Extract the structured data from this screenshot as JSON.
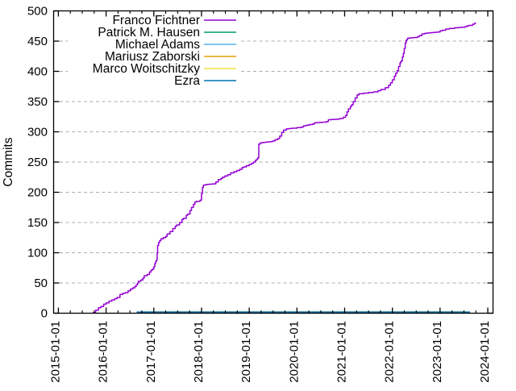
{
  "chart_data": {
    "type": "line",
    "title": "",
    "ylabel": "Commits",
    "xlabel": "",
    "ylim": [
      0,
      500
    ],
    "ytick_step": 50,
    "xlim_years": [
      2014.9,
      2024.11
    ],
    "xtick_years": [
      2015,
      2016,
      2017,
      2018,
      2019,
      2020,
      2021,
      2022,
      2023,
      2024
    ],
    "xtick_labels": [
      "2015-01-01",
      "2016-01-01",
      "2017-01-01",
      "2018-01-01",
      "2019-01-01",
      "2020-01-01",
      "2021-01-01",
      "2022-01-01",
      "2023-01-01",
      "2024-01-01"
    ],
    "ytick_labels": [
      "0",
      "50",
      "100",
      "150",
      "200",
      "250",
      "300",
      "350",
      "400",
      "450",
      "500"
    ],
    "grid": "horizontal-dashed",
    "grid_color": "#adadad",
    "legend_position": "top-left-inside",
    "series": [
      {
        "name": "Franco Fichtner",
        "color": "#9400d3",
        "style": "steps",
        "points": [
          [
            2015.72,
            1
          ],
          [
            2015.78,
            5
          ],
          [
            2015.84,
            9
          ],
          [
            2015.89,
            11
          ],
          [
            2015.95,
            15
          ],
          [
            2016.0,
            17
          ],
          [
            2016.06,
            20
          ],
          [
            2016.12,
            22
          ],
          [
            2016.18,
            24
          ],
          [
            2016.23,
            26
          ],
          [
            2016.29,
            31
          ],
          [
            2016.35,
            33
          ],
          [
            2016.4,
            34
          ],
          [
            2016.46,
            37
          ],
          [
            2016.51,
            40
          ],
          [
            2016.56,
            42
          ],
          [
            2016.6,
            44
          ],
          [
            2016.63,
            47
          ],
          [
            2016.66,
            50
          ],
          [
            2016.68,
            53
          ],
          [
            2016.73,
            55
          ],
          [
            2016.77,
            58
          ],
          [
            2016.8,
            62
          ],
          [
            2016.86,
            64
          ],
          [
            2016.91,
            68
          ],
          [
            2016.94,
            71
          ],
          [
            2016.97,
            73
          ],
          [
            2017.0,
            77
          ],
          [
            2017.02,
            82
          ],
          [
            2017.04,
            86
          ],
          [
            2017.06,
            88
          ],
          [
            2017.07,
            100
          ],
          [
            2017.08,
            112
          ],
          [
            2017.1,
            117
          ],
          [
            2017.12,
            120
          ],
          [
            2017.15,
            123
          ],
          [
            2017.2,
            125
          ],
          [
            2017.25,
            127
          ],
          [
            2017.28,
            131
          ],
          [
            2017.34,
            135
          ],
          [
            2017.4,
            140
          ],
          [
            2017.45,
            144
          ],
          [
            2017.48,
            146
          ],
          [
            2017.54,
            150
          ],
          [
            2017.59,
            155
          ],
          [
            2017.62,
            157
          ],
          [
            2017.68,
            162
          ],
          [
            2017.71,
            164
          ],
          [
            2017.76,
            170
          ],
          [
            2017.79,
            175
          ],
          [
            2017.83,
            180
          ],
          [
            2017.86,
            184
          ],
          [
            2017.89,
            185
          ],
          [
            2017.97,
            187
          ],
          [
            2018.0,
            198
          ],
          [
            2018.02,
            208
          ],
          [
            2018.04,
            212
          ],
          [
            2018.1,
            213
          ],
          [
            2018.26,
            214
          ],
          [
            2018.3,
            217
          ],
          [
            2018.35,
            221
          ],
          [
            2018.41,
            223
          ],
          [
            2018.44,
            225
          ],
          [
            2018.49,
            227
          ],
          [
            2018.55,
            229
          ],
          [
            2018.61,
            232
          ],
          [
            2018.68,
            234
          ],
          [
            2018.74,
            236
          ],
          [
            2018.8,
            238
          ],
          [
            2018.85,
            241
          ],
          [
            2018.89,
            242
          ],
          [
            2018.94,
            244
          ],
          [
            2019.0,
            246
          ],
          [
            2019.05,
            248
          ],
          [
            2019.09,
            250
          ],
          [
            2019.13,
            253
          ],
          [
            2019.16,
            255
          ],
          [
            2019.18,
            257
          ],
          [
            2019.2,
            280
          ],
          [
            2019.24,
            282
          ],
          [
            2019.35,
            283
          ],
          [
            2019.46,
            284
          ],
          [
            2019.5,
            285
          ],
          [
            2019.54,
            287
          ],
          [
            2019.6,
            289
          ],
          [
            2019.64,
            293
          ],
          [
            2019.68,
            299
          ],
          [
            2019.72,
            303
          ],
          [
            2019.78,
            305
          ],
          [
            2019.9,
            306
          ],
          [
            2020.0,
            307
          ],
          [
            2020.1,
            308
          ],
          [
            2020.14,
            310
          ],
          [
            2020.2,
            311
          ],
          [
            2020.33,
            313
          ],
          [
            2020.37,
            315
          ],
          [
            2020.55,
            316
          ],
          [
            2020.62,
            317
          ],
          [
            2020.66,
            320
          ],
          [
            2020.85,
            321
          ],
          [
            2020.9,
            322
          ],
          [
            2020.97,
            324
          ],
          [
            2021.02,
            327
          ],
          [
            2021.05,
            333
          ],
          [
            2021.08,
            338
          ],
          [
            2021.12,
            342
          ],
          [
            2021.15,
            345
          ],
          [
            2021.18,
            350
          ],
          [
            2021.22,
            356
          ],
          [
            2021.26,
            361
          ],
          [
            2021.3,
            363
          ],
          [
            2021.4,
            364
          ],
          [
            2021.5,
            365
          ],
          [
            2021.6,
            366
          ],
          [
            2021.7,
            368
          ],
          [
            2021.76,
            370
          ],
          [
            2021.85,
            373
          ],
          [
            2021.92,
            377
          ],
          [
            2021.96,
            381
          ],
          [
            2022.0,
            386
          ],
          [
            2022.04,
            392
          ],
          [
            2022.07,
            397
          ],
          [
            2022.1,
            401
          ],
          [
            2022.13,
            408
          ],
          [
            2022.16,
            414
          ],
          [
            2022.18,
            417
          ],
          [
            2022.21,
            424
          ],
          [
            2022.23,
            430
          ],
          [
            2022.25,
            438
          ],
          [
            2022.27,
            447
          ],
          [
            2022.29,
            452
          ],
          [
            2022.32,
            455
          ],
          [
            2022.45,
            456
          ],
          [
            2022.52,
            457
          ],
          [
            2022.56,
            459
          ],
          [
            2022.62,
            462
          ],
          [
            2022.68,
            463
          ],
          [
            2022.8,
            464
          ],
          [
            2022.93,
            465
          ],
          [
            2023.0,
            467
          ],
          [
            2023.05,
            468
          ],
          [
            2023.12,
            470
          ],
          [
            2023.2,
            471
          ],
          [
            2023.3,
            472
          ],
          [
            2023.45,
            473
          ],
          [
            2023.52,
            474
          ],
          [
            2023.56,
            475
          ],
          [
            2023.6,
            476
          ],
          [
            2023.66,
            476
          ],
          [
            2023.68,
            478
          ],
          [
            2023.72,
            479
          ],
          [
            2023.74,
            481
          ]
        ]
      },
      {
        "name": "Patrick M. Hausen",
        "color": "#009e73",
        "style": "flat",
        "points": [
          [
            2016.7,
            1
          ],
          [
            2023.55,
            1
          ]
        ]
      },
      {
        "name": "Michael Adams",
        "color": "#56b4e9",
        "style": "flat",
        "points": [
          [
            2016.75,
            1
          ],
          [
            2023.55,
            1
          ]
        ]
      },
      {
        "name": "Mariusz Zaborski",
        "color": "#e69f00",
        "style": "flat",
        "points": [
          [
            2016.8,
            1
          ],
          [
            2023.55,
            1
          ]
        ]
      },
      {
        "name": "Marco Woitschitzky",
        "color": "#f0e442",
        "style": "flat",
        "points": [
          [
            2016.85,
            1
          ],
          [
            2023.55,
            1
          ]
        ]
      },
      {
        "name": "Ezra",
        "color": "#0072b2",
        "style": "flat",
        "points": [
          [
            2016.64,
            1
          ],
          [
            2023.63,
            1
          ]
        ]
      }
    ]
  }
}
